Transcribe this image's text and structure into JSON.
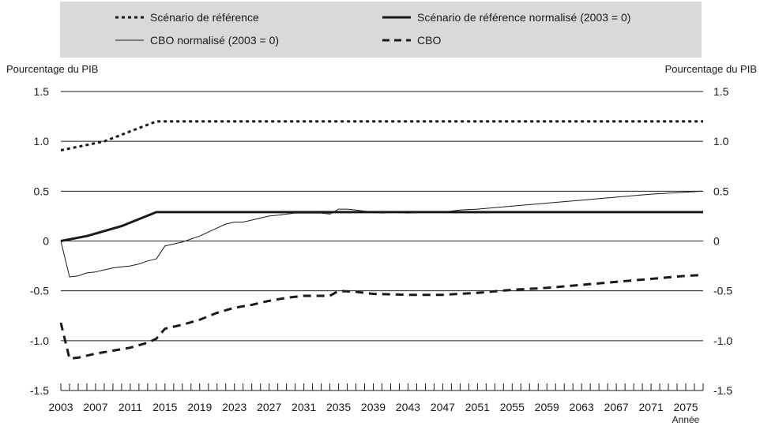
{
  "chart_data": {
    "type": "line",
    "y_axis_label_left": "Pourcentage du PIB",
    "y_axis_label_right": "Pourcentage du PIB",
    "xlabel": "Année",
    "ylim": [
      -1.5,
      1.5
    ],
    "xlim": [
      2003,
      2077
    ],
    "y_ticks": [
      1.5,
      1.0,
      0.5,
      0,
      -0.5,
      -1.0,
      -1.5
    ],
    "y_tick_labels": [
      "1.5",
      "1.0",
      "0.5",
      "0",
      "-0.5",
      "-1.0",
      "-1.5"
    ],
    "x_tick_labels": [
      "2003",
      "2007",
      "2011",
      "2015",
      "2019",
      "2023",
      "2027",
      "2031",
      "2035",
      "2039",
      "2043",
      "2047",
      "2051",
      "2055",
      "2059",
      "2063",
      "2067",
      "2071",
      "2075"
    ],
    "grid": "horizontal",
    "legend_position": "top",
    "series": [
      {
        "name": "Scénario de référence",
        "style": "dotted",
        "color": "#1a1a1a",
        "points": [
          [
            2003,
            0.91
          ],
          [
            2008,
            1.0
          ],
          [
            2014,
            1.2
          ],
          [
            2077,
            1.2
          ]
        ]
      },
      {
        "name": "Scénario de référence normalisé (2003 = 0)",
        "style": "thick",
        "color": "#1a1a1a",
        "points": [
          [
            2003,
            0.0
          ],
          [
            2006,
            0.05
          ],
          [
            2010,
            0.15
          ],
          [
            2014,
            0.29
          ],
          [
            2077,
            0.29
          ]
        ]
      },
      {
        "name": "CBO normalisé (2003 = 0)",
        "style": "thin",
        "color": "#1a1a1a",
        "points": [
          [
            2003,
            0.0
          ],
          [
            2004,
            -0.36
          ],
          [
            2005,
            -0.35
          ],
          [
            2006,
            -0.32
          ],
          [
            2007,
            -0.31
          ],
          [
            2008,
            -0.29
          ],
          [
            2009,
            -0.27
          ],
          [
            2010,
            -0.26
          ],
          [
            2011,
            -0.25
          ],
          [
            2012,
            -0.23
          ],
          [
            2013,
            -0.2
          ],
          [
            2014,
            -0.18
          ],
          [
            2015,
            -0.05
          ],
          [
            2016,
            -0.03
          ],
          [
            2017,
            -0.01
          ],
          [
            2018,
            0.02
          ],
          [
            2019,
            0.05
          ],
          [
            2020,
            0.09
          ],
          [
            2021,
            0.13
          ],
          [
            2022,
            0.17
          ],
          [
            2023,
            0.19
          ],
          [
            2024,
            0.19
          ],
          [
            2025,
            0.21
          ],
          [
            2026,
            0.23
          ],
          [
            2027,
            0.25
          ],
          [
            2028,
            0.26
          ],
          [
            2029,
            0.27
          ],
          [
            2030,
            0.28
          ],
          [
            2031,
            0.28
          ],
          [
            2032,
            0.28
          ],
          [
            2033,
            0.28
          ],
          [
            2034,
            0.27
          ],
          [
            2035,
            0.32
          ],
          [
            2036,
            0.32
          ],
          [
            2037,
            0.31
          ],
          [
            2038,
            0.3
          ],
          [
            2039,
            0.29
          ],
          [
            2040,
            0.28
          ],
          [
            2041,
            0.29
          ],
          [
            2043,
            0.28
          ],
          [
            2045,
            0.29
          ],
          [
            2047,
            0.29
          ],
          [
            2049,
            0.31
          ],
          [
            2051,
            0.32
          ],
          [
            2055,
            0.35
          ],
          [
            2059,
            0.38
          ],
          [
            2063,
            0.41
          ],
          [
            2067,
            0.44
          ],
          [
            2071,
            0.47
          ],
          [
            2075,
            0.49
          ],
          [
            2077,
            0.5
          ]
        ]
      },
      {
        "name": "CBO",
        "style": "dashed",
        "color": "#1a1a1a",
        "points": [
          [
            2003,
            -0.82
          ],
          [
            2004,
            -1.18
          ],
          [
            2005,
            -1.17
          ],
          [
            2007,
            -1.13
          ],
          [
            2009,
            -1.1
          ],
          [
            2011,
            -1.07
          ],
          [
            2013,
            -1.02
          ],
          [
            2014,
            -0.98
          ],
          [
            2015,
            -0.88
          ],
          [
            2017,
            -0.84
          ],
          [
            2019,
            -0.79
          ],
          [
            2021,
            -0.72
          ],
          [
            2023,
            -0.67
          ],
          [
            2025,
            -0.64
          ],
          [
            2027,
            -0.6
          ],
          [
            2029,
            -0.57
          ],
          [
            2031,
            -0.55
          ],
          [
            2033,
            -0.55
          ],
          [
            2034,
            -0.55
          ],
          [
            2035,
            -0.5
          ],
          [
            2037,
            -0.51
          ],
          [
            2039,
            -0.53
          ],
          [
            2043,
            -0.54
          ],
          [
            2047,
            -0.54
          ],
          [
            2051,
            -0.52
          ],
          [
            2055,
            -0.49
          ],
          [
            2059,
            -0.47
          ],
          [
            2063,
            -0.44
          ],
          [
            2067,
            -0.41
          ],
          [
            2071,
            -0.38
          ],
          [
            2075,
            -0.35
          ],
          [
            2077,
            -0.34
          ]
        ]
      }
    ]
  }
}
